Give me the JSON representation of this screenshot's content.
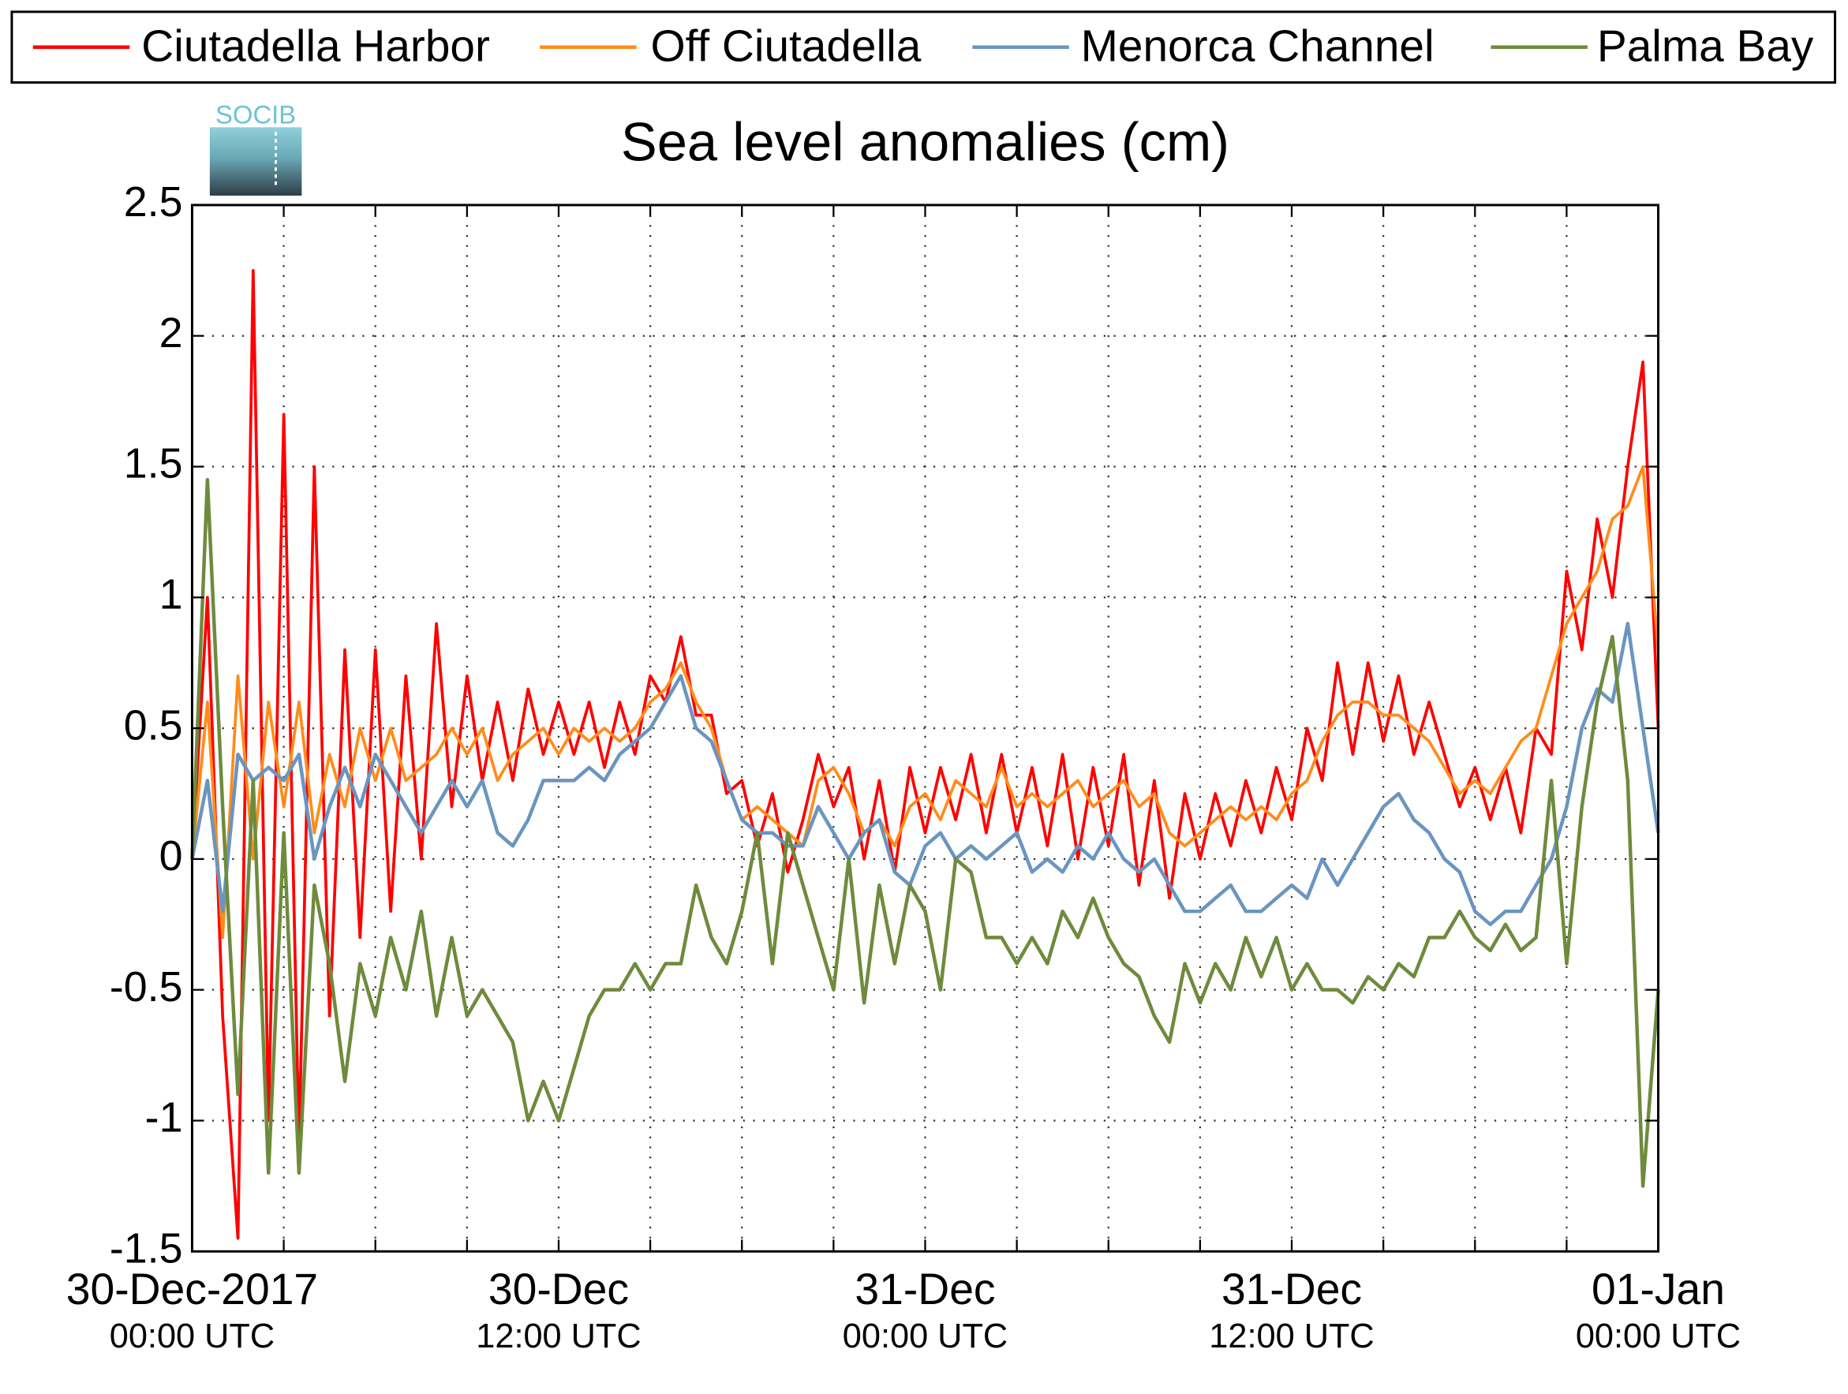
{
  "chart_data": {
    "type": "line",
    "title": "Sea level anomalies (cm)",
    "logo_text": "SOCIB",
    "ylim": [
      -1.5,
      2.5
    ],
    "yticks": [
      -1.5,
      -1,
      -0.5,
      0,
      0.5,
      1,
      1.5,
      2,
      2.5
    ],
    "xlim": [
      0,
      48
    ],
    "xticks": [
      {
        "value": 0,
        "label": [
          "30-Dec-2017",
          "00:00 UTC"
        ]
      },
      {
        "value": 12,
        "label": [
          "30-Dec",
          "12:00 UTC"
        ]
      },
      {
        "value": 24,
        "label": [
          "31-Dec",
          "00:00 UTC"
        ]
      },
      {
        "value": 36,
        "label": [
          "31-Dec",
          "12:00 UTC"
        ]
      },
      {
        "value": 48,
        "label": [
          "01-Jan",
          "00:00 UTC"
        ]
      }
    ],
    "xminorticks": [
      3,
      6,
      9,
      15,
      18,
      21,
      27,
      30,
      33,
      39,
      42,
      45
    ],
    "grid": true,
    "legend": "top",
    "x": [
      0,
      0.5,
      1,
      1.5,
      2,
      2.5,
      3,
      3.5,
      4,
      4.5,
      5,
      5.5,
      6,
      6.5,
      7,
      7.5,
      8,
      8.5,
      9,
      9.5,
      10,
      10.5,
      11,
      11.5,
      12,
      12.5,
      13,
      13.5,
      14,
      14.5,
      15,
      15.5,
      16,
      16.5,
      17,
      17.5,
      18,
      18.5,
      19,
      19.5,
      20,
      20.5,
      21,
      21.5,
      22,
      22.5,
      23,
      23.5,
      24,
      24.5,
      25,
      25.5,
      26,
      26.5,
      27,
      27.5,
      28,
      28.5,
      29,
      29.5,
      30,
      30.5,
      31,
      31.5,
      32,
      32.5,
      33,
      33.5,
      34,
      34.5,
      35,
      35.5,
      36,
      36.5,
      37,
      37.5,
      38,
      38.5,
      39,
      39.5,
      40,
      40.5,
      41,
      41.5,
      42,
      42.5,
      43,
      43.5,
      44,
      44.5,
      45,
      45.5,
      46,
      46.5,
      47,
      47.5,
      48
    ],
    "series": [
      {
        "name": "Ciutadella Harbor",
        "color": "#ff0000",
        "values": [
          0,
          1.0,
          -0.6,
          -1.45,
          2.25,
          -1.0,
          1.7,
          -1.1,
          1.5,
          -0.6,
          0.8,
          -0.3,
          0.8,
          -0.2,
          0.7,
          0,
          0.9,
          0.2,
          0.7,
          0.3,
          0.6,
          0.3,
          0.65,
          0.4,
          0.6,
          0.4,
          0.6,
          0.35,
          0.6,
          0.4,
          0.7,
          0.6,
          0.85,
          0.55,
          0.55,
          0.25,
          0.3,
          0.05,
          0.25,
          -0.05,
          0.15,
          0.4,
          0.2,
          0.35,
          0,
          0.3,
          -0.05,
          0.35,
          0.1,
          0.35,
          0.15,
          0.4,
          0.1,
          0.4,
          0.1,
          0.35,
          0.05,
          0.4,
          0,
          0.35,
          0.05,
          0.4,
          -0.1,
          0.3,
          -0.15,
          0.25,
          0,
          0.25,
          0.05,
          0.3,
          0.1,
          0.35,
          0.15,
          0.5,
          0.3,
          0.75,
          0.4,
          0.75,
          0.45,
          0.7,
          0.4,
          0.6,
          0.4,
          0.2,
          0.35,
          0.15,
          0.35,
          0.1,
          0.5,
          0.4,
          1.1,
          0.8,
          1.3,
          1.0,
          1.5,
          1.9,
          0.5
        ]
      },
      {
        "name": "Off Ciutadella",
        "color": "#ff8c1a",
        "values": [
          0,
          0.6,
          -0.3,
          0.7,
          0,
          0.6,
          0.2,
          0.6,
          0.1,
          0.4,
          0.2,
          0.5,
          0.3,
          0.5,
          0.3,
          0.35,
          0.4,
          0.5,
          0.4,
          0.5,
          0.3,
          0.4,
          0.45,
          0.5,
          0.4,
          0.5,
          0.45,
          0.5,
          0.45,
          0.5,
          0.6,
          0.65,
          0.75,
          0.6,
          0.5,
          0.3,
          0.15,
          0.2,
          0.15,
          0.1,
          0.05,
          0.3,
          0.35,
          0.25,
          0.1,
          0.15,
          0.05,
          0.2,
          0.25,
          0.15,
          0.3,
          0.25,
          0.2,
          0.35,
          0.2,
          0.25,
          0.2,
          0.25,
          0.3,
          0.2,
          0.25,
          0.3,
          0.2,
          0.25,
          0.1,
          0.05,
          0.1,
          0.15,
          0.2,
          0.15,
          0.2,
          0.15,
          0.25,
          0.3,
          0.45,
          0.55,
          0.6,
          0.6,
          0.55,
          0.55,
          0.5,
          0.45,
          0.35,
          0.25,
          0.3,
          0.25,
          0.35,
          0.45,
          0.5,
          0.7,
          0.9,
          1.0,
          1.1,
          1.3,
          1.35,
          1.5,
          0.8
        ]
      },
      {
        "name": "Menorca Channel",
        "color": "#6a95c0",
        "values": [
          0,
          0.3,
          -0.2,
          0.4,
          0.3,
          0.35,
          0.3,
          0.4,
          0,
          0.2,
          0.35,
          0.2,
          0.4,
          0.3,
          0.2,
          0.1,
          0.2,
          0.3,
          0.2,
          0.3,
          0.1,
          0.05,
          0.15,
          0.3,
          0.3,
          0.3,
          0.35,
          0.3,
          0.4,
          0.45,
          0.5,
          0.6,
          0.7,
          0.5,
          0.45,
          0.3,
          0.15,
          0.1,
          0.1,
          0.05,
          0.05,
          0.2,
          0.1,
          0,
          0.1,
          0.15,
          -0.05,
          -0.1,
          0.05,
          0.1,
          0,
          0.05,
          0,
          0.05,
          0.1,
          -0.05,
          0,
          -0.05,
          0.05,
          0,
          0.1,
          0,
          -0.05,
          0,
          -0.1,
          -0.2,
          -0.2,
          -0.15,
          -0.1,
          -0.2,
          -0.2,
          -0.15,
          -0.1,
          -0.15,
          0,
          -0.1,
          0,
          0.1,
          0.2,
          0.25,
          0.15,
          0.1,
          0,
          -0.05,
          -0.2,
          -0.25,
          -0.2,
          -0.2,
          -0.1,
          0,
          0.2,
          0.5,
          0.65,
          0.6,
          0.9,
          0.5,
          0.1
        ]
      },
      {
        "name": "Palma Bay",
        "color": "#6e8b3d",
        "values": [
          0,
          1.45,
          0.2,
          -0.9,
          0.3,
          -1.2,
          0.1,
          -1.2,
          -0.1,
          -0.4,
          -0.85,
          -0.4,
          -0.6,
          -0.3,
          -0.5,
          -0.2,
          -0.6,
          -0.3,
          -0.6,
          -0.5,
          -0.6,
          -0.7,
          -1.0,
          -0.85,
          -1.0,
          -0.8,
          -0.6,
          -0.5,
          -0.5,
          -0.4,
          -0.5,
          -0.4,
          -0.4,
          -0.1,
          -0.3,
          -0.4,
          -0.2,
          0.1,
          -0.4,
          0.1,
          -0.1,
          -0.3,
          -0.5,
          0,
          -0.55,
          -0.1,
          -0.4,
          -0.1,
          -0.2,
          -0.5,
          0,
          -0.05,
          -0.3,
          -0.3,
          -0.4,
          -0.3,
          -0.4,
          -0.2,
          -0.3,
          -0.15,
          -0.3,
          -0.4,
          -0.45,
          -0.6,
          -0.7,
          -0.4,
          -0.55,
          -0.4,
          -0.5,
          -0.3,
          -0.45,
          -0.3,
          -0.5,
          -0.4,
          -0.5,
          -0.5,
          -0.55,
          -0.45,
          -0.5,
          -0.4,
          -0.45,
          -0.3,
          -0.3,
          -0.2,
          -0.3,
          -0.35,
          -0.25,
          -0.35,
          -0.3,
          0.3,
          -0.4,
          0.2,
          0.6,
          0.85,
          0.3,
          -1.25,
          -0.5
        ]
      }
    ]
  }
}
